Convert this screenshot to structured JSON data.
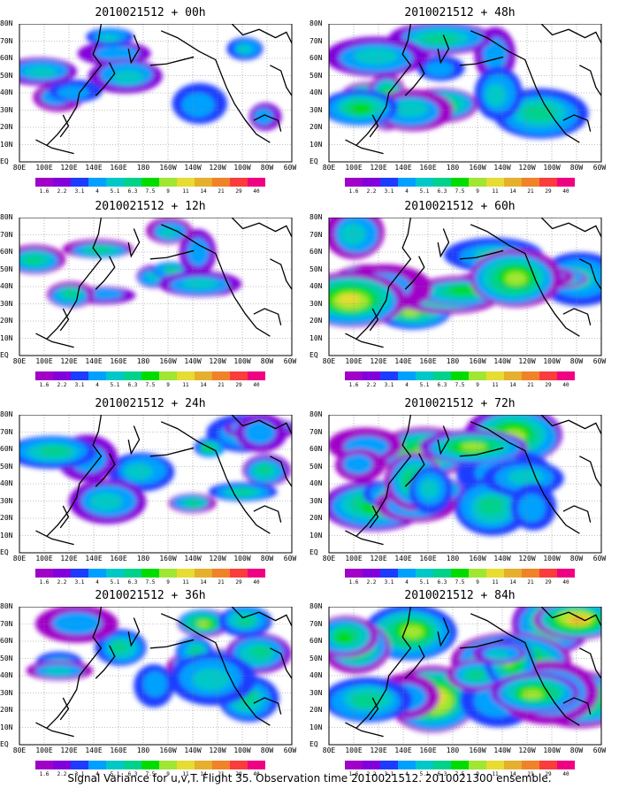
{
  "panels": [
    {
      "title": "2010021512 + 00h",
      "intensity": 0.25,
      "seed": 3
    },
    {
      "title": "2010021512 + 12h",
      "intensity": 0.4,
      "seed": 7
    },
    {
      "title": "2010021512 + 24h",
      "intensity": 0.5,
      "seed": 11
    },
    {
      "title": "2010021512 + 36h",
      "intensity": 0.6,
      "seed": 13
    },
    {
      "title": "2010021512 + 48h",
      "intensity": 0.7,
      "seed": 17
    },
    {
      "title": "2010021512 + 60h",
      "intensity": 0.8,
      "seed": 19
    },
    {
      "title": "2010021512 + 72h",
      "intensity": 0.9,
      "seed": 23
    },
    {
      "title": "2010021512 + 84h",
      "intensity": 1.0,
      "seed": 29
    }
  ],
  "lat_labels": [
    "80N",
    "70N",
    "60N",
    "50N",
    "40N",
    "30N",
    "20N",
    "10N",
    "EQ"
  ],
  "lon_labels": [
    "80E",
    "100E",
    "120E",
    "140E",
    "160E",
    "180",
    "160W",
    "140W",
    "120W",
    "100W",
    "80W",
    "60W"
  ],
  "colorbar": {
    "labels": [
      "1.6",
      "2.2",
      "3.1",
      "4",
      "5.1",
      "6.3",
      "7.5",
      "9",
      "11",
      "14",
      "21",
      "29",
      "40"
    ],
    "colors": [
      "#a000c8",
      "#8200dc",
      "#1e3cff",
      "#00a0ff",
      "#00c8c8",
      "#00d28c",
      "#00dc00",
      "#a0e632",
      "#e6dc32",
      "#e6af2d",
      "#f08228",
      "#fa3c3c",
      "#f00082"
    ]
  },
  "caption": "Signal Variance for u,v,T. Flight 35. Observation time 2010021512. 2010021300 ensemble."
}
